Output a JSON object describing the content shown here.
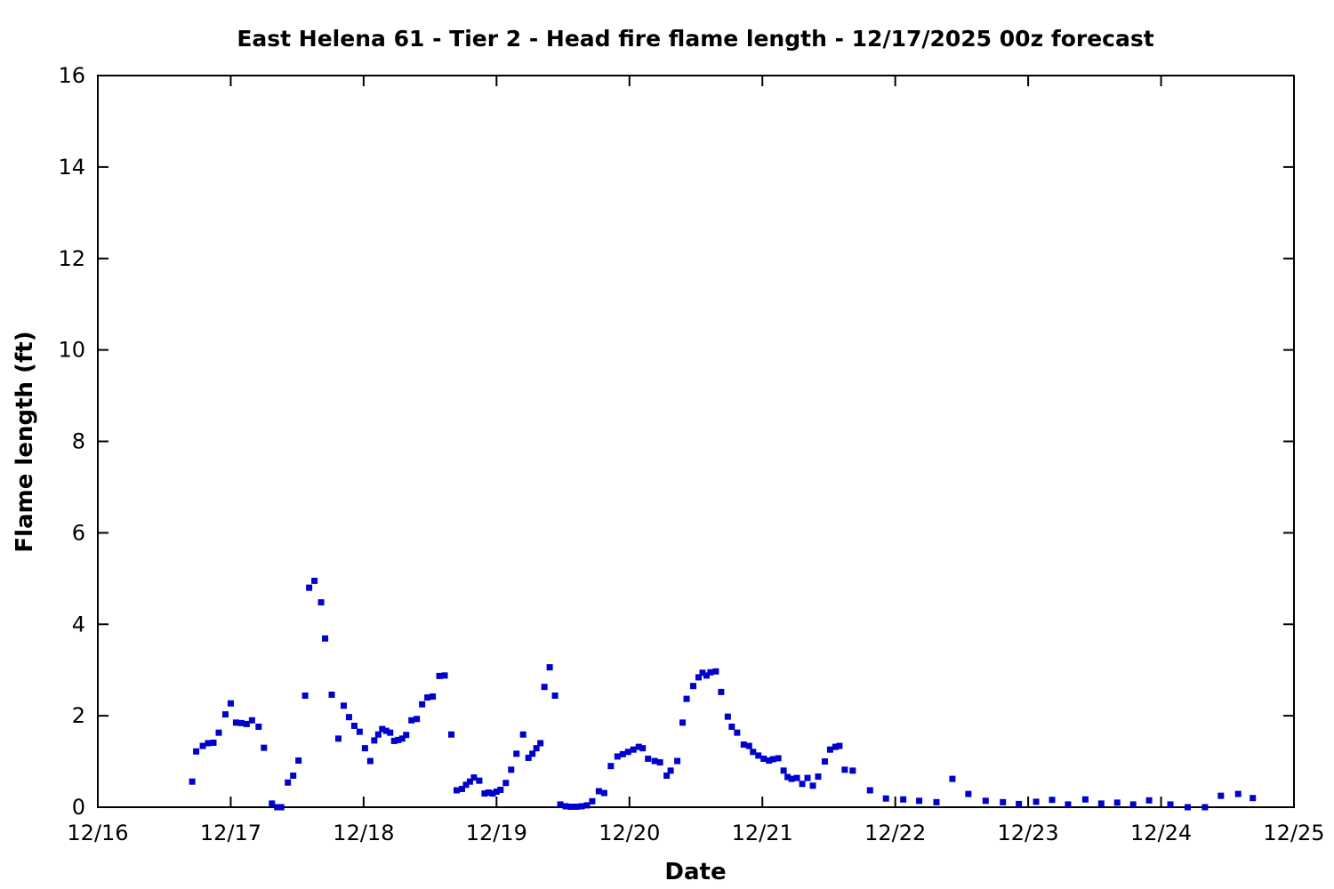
{
  "chart_data": {
    "type": "scatter",
    "title": "East Helena 61 - Tier 2 - Head fire flame length - 12/17/2025 00z forecast",
    "xlabel": "Date",
    "ylabel": "Flame length (ft)",
    "x_tick_labels": [
      "12/16",
      "12/17",
      "12/18",
      "12/19",
      "12/20",
      "12/21",
      "12/22",
      "12/23",
      "12/24",
      "12/25"
    ],
    "x_tick_values": [
      0,
      1,
      2,
      3,
      4,
      5,
      6,
      7,
      8,
      9
    ],
    "y_tick_values": [
      0,
      2,
      4,
      6,
      8,
      10,
      12,
      14,
      16
    ],
    "xlim": [
      0,
      9
    ],
    "ylim": [
      0,
      16
    ],
    "x_unit": "days after 12/16",
    "grid": false,
    "legend": null,
    "marker": {
      "shape": "square",
      "size": 7,
      "color": "#0000cc"
    },
    "points": [
      [
        0.71,
        0.56
      ],
      [
        0.74,
        1.22
      ],
      [
        0.79,
        1.34
      ],
      [
        0.83,
        1.4
      ],
      [
        0.87,
        1.41
      ],
      [
        0.91,
        1.63
      ],
      [
        0.96,
        2.03
      ],
      [
        1.0,
        2.27
      ],
      [
        1.04,
        1.85
      ],
      [
        1.08,
        1.84
      ],
      [
        1.12,
        1.82
      ],
      [
        1.16,
        1.9
      ],
      [
        1.21,
        1.76
      ],
      [
        1.25,
        1.3
      ],
      [
        1.31,
        0.08
      ],
      [
        1.35,
        0.0
      ],
      [
        1.38,
        0.0
      ],
      [
        1.43,
        0.54
      ],
      [
        1.47,
        0.69
      ],
      [
        1.51,
        1.02
      ],
      [
        1.56,
        2.44
      ],
      [
        1.59,
        4.8
      ],
      [
        1.63,
        4.95
      ],
      [
        1.68,
        4.48
      ],
      [
        1.71,
        3.69
      ],
      [
        1.76,
        2.46
      ],
      [
        1.81,
        1.5
      ],
      [
        1.85,
        2.22
      ],
      [
        1.89,
        1.97
      ],
      [
        1.93,
        1.78
      ],
      [
        1.97,
        1.65
      ],
      [
        2.01,
        1.29
      ],
      [
        2.05,
        1.01
      ],
      [
        2.08,
        1.46
      ],
      [
        2.11,
        1.59
      ],
      [
        2.14,
        1.71
      ],
      [
        2.17,
        1.67
      ],
      [
        2.2,
        1.63
      ],
      [
        2.23,
        1.45
      ],
      [
        2.26,
        1.47
      ],
      [
        2.29,
        1.5
      ],
      [
        2.32,
        1.58
      ],
      [
        2.36,
        1.9
      ],
      [
        2.4,
        1.93
      ],
      [
        2.44,
        2.25
      ],
      [
        2.48,
        2.4
      ],
      [
        2.52,
        2.42
      ],
      [
        2.57,
        2.87
      ],
      [
        2.61,
        2.88
      ],
      [
        2.66,
        1.59
      ],
      [
        2.7,
        0.37
      ],
      [
        2.74,
        0.4
      ],
      [
        2.77,
        0.49
      ],
      [
        2.8,
        0.56
      ],
      [
        2.83,
        0.65
      ],
      [
        2.87,
        0.58
      ],
      [
        2.91,
        0.3
      ],
      [
        2.94,
        0.32
      ],
      [
        2.97,
        0.3
      ],
      [
        3.0,
        0.34
      ],
      [
        3.03,
        0.38
      ],
      [
        3.07,
        0.53
      ],
      [
        3.11,
        0.82
      ],
      [
        3.15,
        1.17
      ],
      [
        3.2,
        1.59
      ],
      [
        3.24,
        1.08
      ],
      [
        3.27,
        1.17
      ],
      [
        3.3,
        1.29
      ],
      [
        3.33,
        1.4
      ],
      [
        3.36,
        2.63
      ],
      [
        3.4,
        3.06
      ],
      [
        3.44,
        2.44
      ],
      [
        3.48,
        0.06
      ],
      [
        3.52,
        0.02
      ],
      [
        3.56,
        0.01
      ],
      [
        3.6,
        0.01
      ],
      [
        3.64,
        0.02
      ],
      [
        3.68,
        0.04
      ],
      [
        3.72,
        0.13
      ],
      [
        3.77,
        0.35
      ],
      [
        3.81,
        0.31
      ],
      [
        3.86,
        0.9
      ],
      [
        3.91,
        1.11
      ],
      [
        3.95,
        1.16
      ],
      [
        3.99,
        1.21
      ],
      [
        4.03,
        1.26
      ],
      [
        4.07,
        1.32
      ],
      [
        4.1,
        1.29
      ],
      [
        4.14,
        1.06
      ],
      [
        4.19,
        1.01
      ],
      [
        4.23,
        0.98
      ],
      [
        4.28,
        0.69
      ],
      [
        4.31,
        0.8
      ],
      [
        4.36,
        1.01
      ],
      [
        4.4,
        1.85
      ],
      [
        4.43,
        2.37
      ],
      [
        4.48,
        2.65
      ],
      [
        4.52,
        2.84
      ],
      [
        4.55,
        2.94
      ],
      [
        4.58,
        2.88
      ],
      [
        4.61,
        2.95
      ],
      [
        4.65,
        2.97
      ],
      [
        4.69,
        2.52
      ],
      [
        4.74,
        1.98
      ],
      [
        4.77,
        1.76
      ],
      [
        4.81,
        1.63
      ],
      [
        4.86,
        1.37
      ],
      [
        4.9,
        1.34
      ],
      [
        4.93,
        1.21
      ],
      [
        4.97,
        1.13
      ],
      [
        5.01,
        1.06
      ],
      [
        5.05,
        1.02
      ],
      [
        5.08,
        1.05
      ],
      [
        5.12,
        1.07
      ],
      [
        5.16,
        0.8
      ],
      [
        5.19,
        0.66
      ],
      [
        5.22,
        0.62
      ],
      [
        5.26,
        0.64
      ],
      [
        5.3,
        0.51
      ],
      [
        5.34,
        0.64
      ],
      [
        5.38,
        0.47
      ],
      [
        5.42,
        0.67
      ],
      [
        5.47,
        1.0
      ],
      [
        5.51,
        1.26
      ],
      [
        5.55,
        1.32
      ],
      [
        5.58,
        1.34
      ],
      [
        5.62,
        0.82
      ],
      [
        5.68,
        0.8
      ],
      [
        5.81,
        0.37
      ],
      [
        5.93,
        0.19
      ],
      [
        6.06,
        0.17
      ],
      [
        6.18,
        0.14
      ],
      [
        6.31,
        0.11
      ],
      [
        6.43,
        0.62
      ],
      [
        6.55,
        0.29
      ],
      [
        6.68,
        0.14
      ],
      [
        6.81,
        0.11
      ],
      [
        6.93,
        0.07
      ],
      [
        7.06,
        0.12
      ],
      [
        7.18,
        0.16
      ],
      [
        7.3,
        0.06
      ],
      [
        7.43,
        0.17
      ],
      [
        7.55,
        0.08
      ],
      [
        7.67,
        0.1
      ],
      [
        7.79,
        0.06
      ],
      [
        7.91,
        0.15
      ],
      [
        8.07,
        0.06
      ],
      [
        8.2,
        0.0
      ],
      [
        8.33,
        0.0
      ],
      [
        8.45,
        0.25
      ],
      [
        8.58,
        0.29
      ],
      [
        8.69,
        0.2
      ]
    ]
  }
}
